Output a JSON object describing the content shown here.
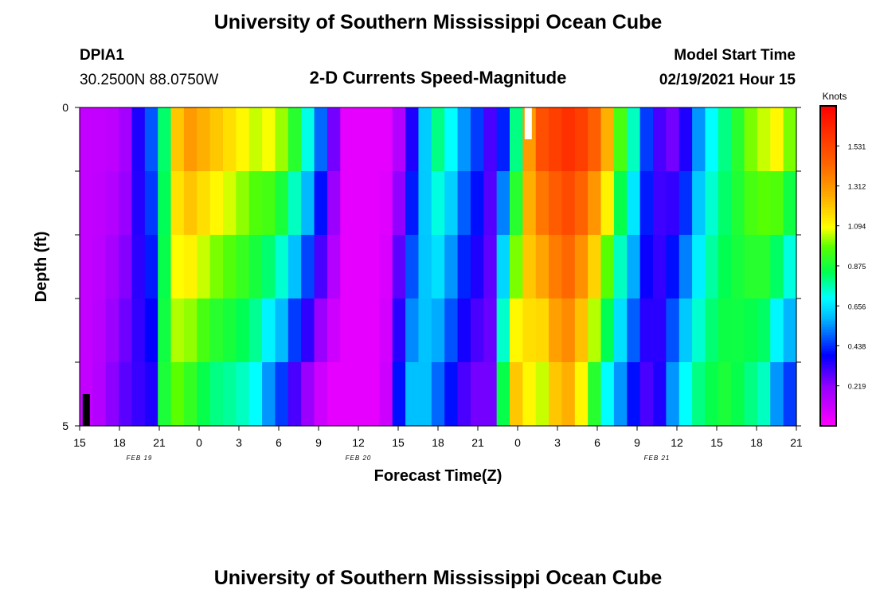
{
  "header": {
    "title": "University of Southern Mississippi Ocean Cube",
    "station_id": "DPIA1",
    "station_coords": "30.2500N 88.0750W",
    "product": "2-D Currents Speed-Magnitude",
    "model_start_label": "Model Start Time",
    "model_start_value": "02/19/2021 Hour 15"
  },
  "footer": {
    "title": "University of Southern Mississippi Ocean Cube"
  },
  "chart_data": {
    "type": "heatmap",
    "title": "2-D Currents Speed-Magnitude",
    "xlabel": "Forecast Time(Z)",
    "ylabel": "Depth (ft)",
    "x_hours_since_start": [
      0,
      54
    ],
    "y_depth_range_ft": [
      0,
      5
    ],
    "xticks": [
      {
        "h": 0,
        "label": "15"
      },
      {
        "h": 3,
        "label": "18"
      },
      {
        "h": 6,
        "label": "21"
      },
      {
        "h": 9,
        "label": "0"
      },
      {
        "h": 12,
        "label": "3"
      },
      {
        "h": 15,
        "label": "6"
      },
      {
        "h": 18,
        "label": "9"
      },
      {
        "h": 21,
        "label": "12"
      },
      {
        "h": 24,
        "label": "15"
      },
      {
        "h": 27,
        "label": "18"
      },
      {
        "h": 30,
        "label": "21"
      },
      {
        "h": 33,
        "label": "0"
      },
      {
        "h": 36,
        "label": "3"
      },
      {
        "h": 39,
        "label": "6"
      },
      {
        "h": 42,
        "label": "9"
      },
      {
        "h": 45,
        "label": "12"
      },
      {
        "h": 48,
        "label": "15"
      },
      {
        "h": 51,
        "label": "18"
      },
      {
        "h": 54,
        "label": "21"
      }
    ],
    "date_labels": [
      {
        "h": 4.5,
        "label": "FEB 19"
      },
      {
        "h": 21,
        "label": "FEB 20"
      },
      {
        "h": 43.5,
        "label": "FEB 21"
      }
    ],
    "yticks": [
      {
        "depth": 0,
        "label": "0"
      },
      {
        "depth": 1,
        "label": ""
      },
      {
        "depth": 2,
        "label": ""
      },
      {
        "depth": 3,
        "label": ""
      },
      {
        "depth": 4,
        "label": ""
      },
      {
        "depth": 5,
        "label": "5"
      }
    ],
    "colorbar": {
      "unit": "Knots",
      "range": [
        0,
        1.75
      ],
      "ticks": [
        "0.219",
        "0.438",
        "0.656",
        "0.875",
        "1.094",
        "1.312",
        "1.531"
      ]
    },
    "depth_layers": 5,
    "surface_profile_knots": [
      0.12,
      0.12,
      0.13,
      0.18,
      0.35,
      0.48,
      0.82,
      1.2,
      1.3,
      1.25,
      1.2,
      1.15,
      1.1,
      1.05,
      1.08,
      1.02,
      0.9,
      0.72,
      0.5,
      0.25,
      0.05,
      0.05,
      0.05,
      0.05,
      0.15,
      0.35,
      0.62,
      0.8,
      0.7,
      0.55,
      0.45,
      0.3,
      0.42,
      0.8,
      1.3,
      1.5,
      1.55,
      1.6,
      1.55,
      1.45,
      1.25,
      0.95,
      0.75,
      0.45,
      0.3,
      0.25,
      0.35,
      0.55,
      0.7,
      0.8,
      0.9,
      1.0,
      1.05,
      1.1,
      1.0
    ],
    "bottom_profile_knots": [
      0.12,
      0.15,
      0.22,
      0.28,
      0.32,
      0.35,
      0.88,
      0.98,
      0.92,
      0.85,
      0.8,
      0.78,
      0.75,
      0.7,
      0.55,
      0.45,
      0.3,
      0.2,
      0.1,
      0.05,
      0.05,
      0.05,
      0.05,
      0.1,
      0.4,
      0.6,
      0.6,
      0.5,
      0.4,
      0.3,
      0.25,
      0.25,
      0.85,
      1.2,
      1.1,
      1.05,
      1.2,
      1.25,
      1.1,
      0.9,
      0.7,
      0.55,
      0.4,
      0.3,
      0.35,
      0.55,
      0.7,
      0.8,
      0.85,
      0.88,
      0.85,
      0.8,
      0.75,
      0.55,
      0.45
    ],
    "markers": [
      {
        "color": "#ffffff",
        "h": 33.8,
        "depth_range": [
          0,
          0.5
        ]
      },
      {
        "color": "#000000",
        "h": 0.5,
        "depth_range": [
          4.5,
          5
        ]
      }
    ]
  }
}
